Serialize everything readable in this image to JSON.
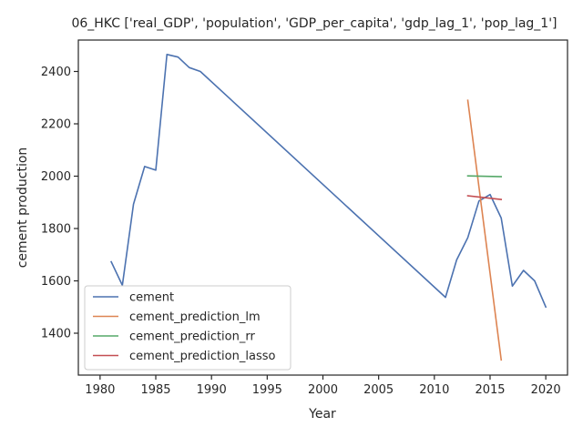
{
  "chart_data": {
    "type": "line",
    "title": "06_HKC ['real_GDP', 'population', 'GDP_per_capita', 'gdp_lag_1', 'pop_lag_1']",
    "xlabel": "Year",
    "ylabel": "cement production",
    "xlim": [
      1978.05,
      2021.95
    ],
    "ylim": [
      1240,
      2520
    ],
    "xticks": [
      1980,
      1985,
      1990,
      1995,
      2000,
      2005,
      2010,
      2015,
      2020
    ],
    "yticks": [
      1400,
      1600,
      1800,
      2000,
      2200,
      2400
    ],
    "grid": false,
    "legend_position": "lower-left",
    "series": [
      {
        "name": "cement",
        "color": "#4c72b0",
        "points": [
          [
            1981,
            1673
          ],
          [
            1982,
            1583
          ],
          [
            1983,
            1893
          ],
          [
            1984,
            2037
          ],
          [
            1985,
            2023
          ],
          [
            1986,
            2465
          ],
          [
            1987,
            2455
          ],
          [
            1988,
            2415
          ],
          [
            1989,
            2400
          ],
          [
            2011,
            1537
          ],
          [
            2012,
            1680
          ],
          [
            2013,
            1765
          ],
          [
            2014,
            1905
          ],
          [
            2015,
            1930
          ],
          [
            2016,
            1840
          ],
          [
            2017,
            1580
          ],
          [
            2018,
            1640
          ],
          [
            2019,
            1600
          ],
          [
            2020,
            1500
          ]
        ]
      },
      {
        "name": "cement_prediction_lm",
        "color": "#dd8452",
        "points": [
          [
            2013,
            2290
          ],
          [
            2016,
            1298
          ]
        ]
      },
      {
        "name": "cement_prediction_rr",
        "color": "#55a868",
        "points": [
          [
            2013,
            2001
          ],
          [
            2016,
            1998
          ]
        ]
      },
      {
        "name": "cement_prediction_lasso",
        "color": "#c44e52",
        "points": [
          [
            2013,
            1925
          ],
          [
            2016,
            1911
          ]
        ]
      }
    ]
  }
}
